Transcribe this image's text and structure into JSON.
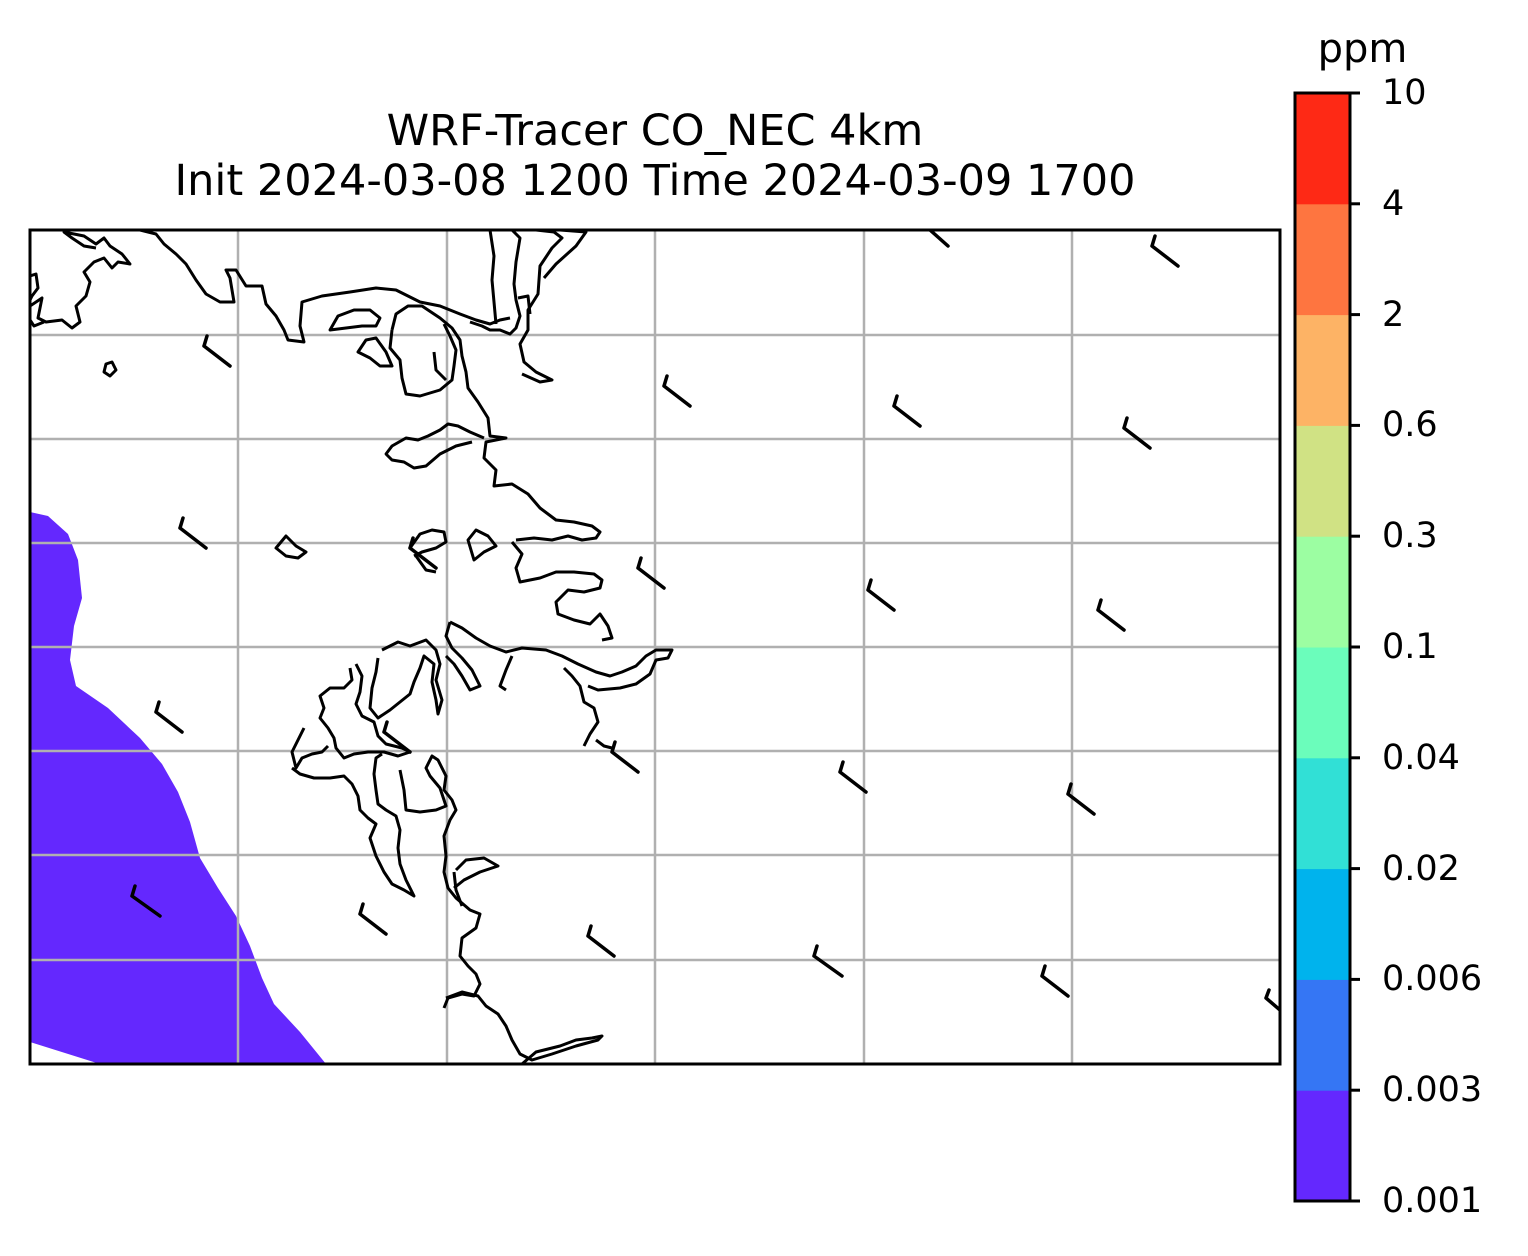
{
  "title": {
    "line1": "WRF-Tracer CO_NEC 4km",
    "line2": "Init 2024-03-08 1200 Time 2024-03-09 1700"
  },
  "colorbar": {
    "unit": "ppm",
    "levels": [
      "0.001",
      "0.003",
      "0.006",
      "0.02",
      "0.04",
      "0.1",
      "0.3",
      "0.6",
      "2",
      "4",
      "10"
    ],
    "colors": [
      "#6428fe",
      "#3576f4",
      "#00b3ed",
      "#31e0d6",
      "#6bfdbb",
      "#9cfea2",
      "#d0e284",
      "#fdb365",
      "#fe7540",
      "#fe2915"
    ]
  },
  "map": {
    "concentration_fill": "0.001–0.003 ppm band",
    "gridlines": "on",
    "wind_barbs": "on"
  }
}
